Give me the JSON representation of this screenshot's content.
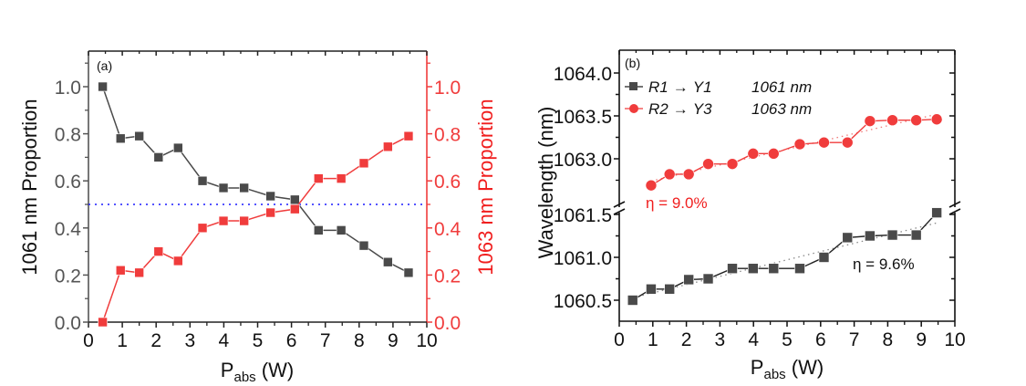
{
  "chart_data": [
    {
      "type": "line",
      "panel_label": "(a)",
      "xlabel_main": "P",
      "xlabel_sub": "abs",
      "xlabel_unit": " (W)",
      "ylabel": "1061 nm Proportion",
      "ylabel_right": "1063 nm Proportion",
      "xlim": [
        0,
        10
      ],
      "ylim": [
        0,
        1.15
      ],
      "xticks": [
        "0",
        "1",
        "2",
        "3",
        "4",
        "5",
        "6",
        "7",
        "8",
        "9",
        "10"
      ],
      "yticks": [
        "0.0",
        "0.2",
        "0.4",
        "0.6",
        "0.8",
        "1.0"
      ],
      "yticks_right": [
        "0.0",
        "0.2",
        "0.4",
        "0.6",
        "0.8",
        "1.0"
      ],
      "reference_line": {
        "y": 0.5,
        "style": "dotted",
        "color": "#1a1aff"
      },
      "x": [
        0.42,
        0.95,
        1.5,
        2.07,
        2.65,
        3.37,
        3.99,
        4.6,
        5.38,
        6.1,
        6.8,
        7.47,
        8.14,
        8.85,
        9.46
      ],
      "series": [
        {
          "name": "1061 nm",
          "axis": "left",
          "marker": "square",
          "color": "#4a4a4a",
          "values": [
            1.0,
            0.78,
            0.79,
            0.7,
            0.74,
            0.6,
            0.57,
            0.57,
            0.535,
            0.52,
            0.39,
            0.39,
            0.325,
            0.255,
            0.21
          ]
        },
        {
          "name": "1063 nm",
          "axis": "right",
          "marker": "square",
          "color": "#f03c3c",
          "values": [
            0.0,
            0.22,
            0.21,
            0.3,
            0.26,
            0.4,
            0.43,
            0.43,
            0.465,
            0.48,
            0.61,
            0.61,
            0.675,
            0.745,
            0.79
          ]
        }
      ]
    },
    {
      "type": "line",
      "panel_label": "(b)",
      "xlabel_main": "P",
      "xlabel_sub": "abs",
      "xlabel_unit": " (W)",
      "ylabel": "Wavelength (nm)",
      "xlim": [
        0,
        10
      ],
      "ylim_upper": [
        1062.35,
        1064.25
      ],
      "ylim_lower": [
        1060.25,
        1061.6
      ],
      "axis_break": true,
      "xticks": [
        "0",
        "1",
        "2",
        "3",
        "4",
        "5",
        "6",
        "7",
        "8",
        "9",
        "10"
      ],
      "yticks_upper": [
        "1063.0",
        "1063.5",
        "1064.0"
      ],
      "yticks_lower": [
        "1060.5",
        "1061.0",
        "1061.5"
      ],
      "legend": [
        {
          "from": "R1",
          "to": "Y1",
          "wavelength": "1061 nm",
          "marker": "square",
          "color": "#4a4a4a"
        },
        {
          "from": "R2",
          "to": "Y3",
          "wavelength": "1063 nm",
          "marker": "circle",
          "color": "#f03c3c"
        }
      ],
      "legend_arrow": "→",
      "legend_placement": "top-left",
      "annotations": [
        {
          "text": "η = 9.0%",
          "color": "#f01e1e"
        },
        {
          "text": "η = 9.6%",
          "color": "#111111"
        }
      ],
      "series": [
        {
          "name": "R1 → Y1 1061 nm",
          "segment": "lower",
          "marker": "square",
          "color": "#4a4a4a",
          "x": [
            0.4,
            0.95,
            1.5,
            2.07,
            2.65,
            3.37,
            3.99,
            4.6,
            5.38,
            6.1,
            6.8,
            7.47,
            8.14,
            8.85,
            9.46
          ],
          "values": [
            1060.5,
            1060.63,
            1060.63,
            1060.74,
            1060.75,
            1060.87,
            1060.87,
            1060.87,
            1060.87,
            1061.0,
            1061.23,
            1061.25,
            1061.26,
            1061.26,
            1061.52
          ],
          "fit": {
            "style": "dotted",
            "slope_label": "η = 9.6%"
          }
        },
        {
          "name": "R2 → Y3 1063 nm",
          "segment": "upper",
          "marker": "circle",
          "color": "#f03c3c",
          "x": [
            0.95,
            1.5,
            2.07,
            2.65,
            3.37,
            3.99,
            4.6,
            5.38,
            6.1,
            6.8,
            7.47,
            8.14,
            8.85,
            9.46
          ],
          "values": [
            1062.69,
            1062.82,
            1062.82,
            1062.94,
            1062.94,
            1063.06,
            1063.06,
            1063.17,
            1063.19,
            1063.19,
            1063.44,
            1063.45,
            1063.45,
            1063.46
          ],
          "fit": {
            "style": "dotted",
            "slope_label": "η = 9.0%"
          }
        }
      ]
    }
  ]
}
